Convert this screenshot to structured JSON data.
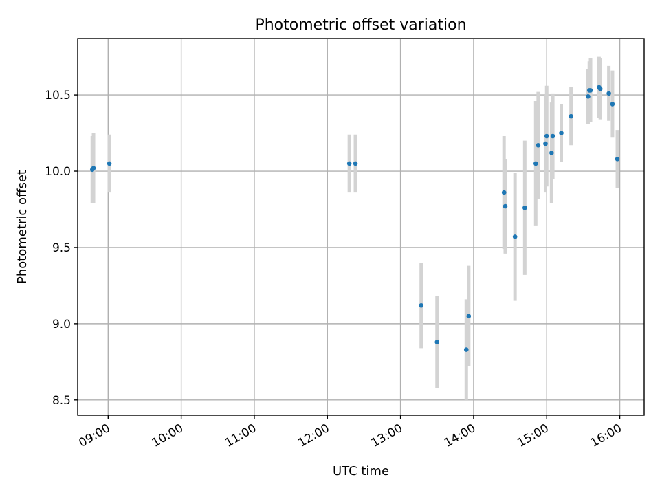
{
  "chart_data": {
    "type": "scatter",
    "title": "Photometric offset variation",
    "xlabel": "UTC time",
    "ylabel": "Photometric offset",
    "xlim": [
      "08:35",
      "16:20"
    ],
    "ylim": [
      8.4,
      10.87
    ],
    "grid": true,
    "x_ticks": [
      "09:00",
      "10:00",
      "11:00",
      "12:00",
      "13:00",
      "14:00",
      "15:00",
      "16:00"
    ],
    "y_ticks": [
      "8.5",
      "9.0",
      "9.5",
      "10.0",
      "10.5"
    ],
    "colors": {
      "point": "#1f77b4",
      "errorbar": "#d3d3d3",
      "grid": "#b0b0b0"
    },
    "points": [
      {
        "time": "08:47",
        "y": 10.01,
        "err": 0.22
      },
      {
        "time": "08:48",
        "y": 10.02,
        "err": 0.23
      },
      {
        "time": "09:01",
        "y": 10.05,
        "err": 0.19
      },
      {
        "time": "12:18",
        "y": 10.05,
        "err": 0.19
      },
      {
        "time": "12:23",
        "y": 10.05,
        "err": 0.19
      },
      {
        "time": "13:17",
        "y": 9.12,
        "err": 0.28
      },
      {
        "time": "13:30",
        "y": 8.88,
        "err": 0.3
      },
      {
        "time": "13:54",
        "y": 8.83,
        "err": 0.33
      },
      {
        "time": "13:56",
        "y": 9.05,
        "err": 0.33
      },
      {
        "time": "14:25",
        "y": 9.86,
        "err": 0.37
      },
      {
        "time": "14:26",
        "y": 9.77,
        "err": 0.31
      },
      {
        "time": "14:34",
        "y": 9.57,
        "err": 0.42
      },
      {
        "time": "14:42",
        "y": 9.76,
        "err": 0.44
      },
      {
        "time": "14:51",
        "y": 10.05,
        "err": 0.41
      },
      {
        "time": "14:53",
        "y": 10.17,
        "err": 0.35
      },
      {
        "time": "14:59",
        "y": 10.18,
        "err": 0.32
      },
      {
        "time": "15:00",
        "y": 10.23,
        "err": 0.33
      },
      {
        "time": "15:04",
        "y": 10.12,
        "err": 0.33
      },
      {
        "time": "15:05",
        "y": 10.23,
        "err": 0.28
      },
      {
        "time": "15:12",
        "y": 10.25,
        "err": 0.19
      },
      {
        "time": "15:20",
        "y": 10.36,
        "err": 0.19
      },
      {
        "time": "15:34",
        "y": 10.49,
        "err": 0.18
      },
      {
        "time": "15:35",
        "y": 10.53,
        "err": 0.19
      },
      {
        "time": "15:36",
        "y": 10.53,
        "err": 0.21
      },
      {
        "time": "15:43",
        "y": 10.55,
        "err": 0.2
      },
      {
        "time": "15:44",
        "y": 10.54,
        "err": 0.2
      },
      {
        "time": "15:51",
        "y": 10.51,
        "err": 0.18
      },
      {
        "time": "15:54",
        "y": 10.44,
        "err": 0.22
      },
      {
        "time": "15:58",
        "y": 10.08,
        "err": 0.19
      }
    ]
  }
}
